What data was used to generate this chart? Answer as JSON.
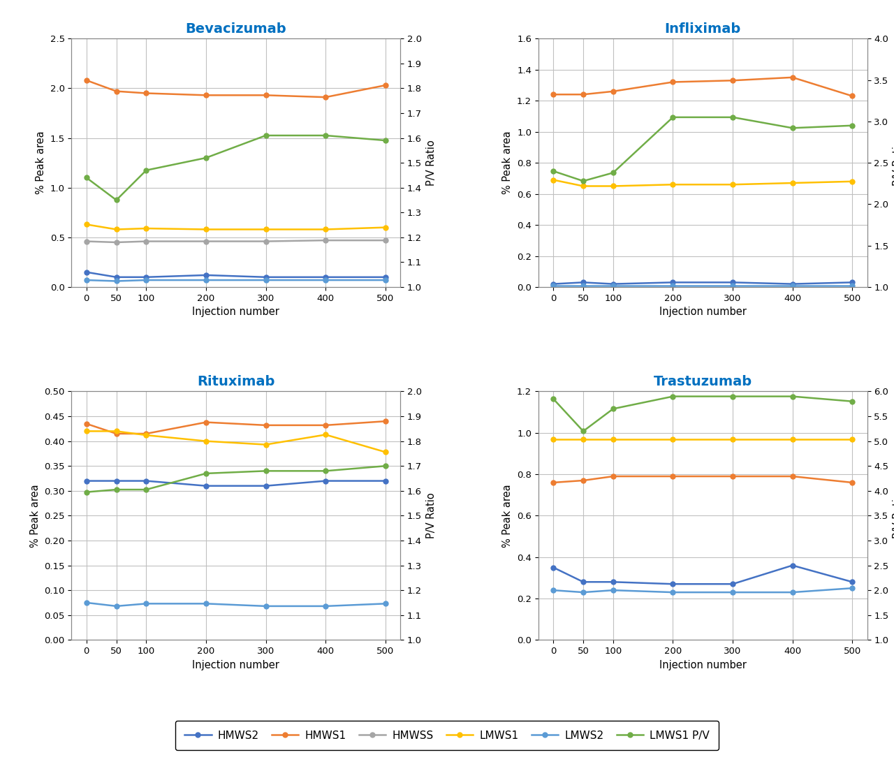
{
  "x": [
    0,
    50,
    100,
    200,
    300,
    400,
    500
  ],
  "plots": {
    "Bevacizumab": {
      "HMWS2": [
        0.15,
        0.1,
        0.1,
        0.12,
        0.1,
        0.1,
        0.1
      ],
      "HMWS1": [
        2.08,
        1.97,
        1.95,
        1.93,
        1.93,
        1.91,
        2.03
      ],
      "HMWSS": [
        0.46,
        0.45,
        0.46,
        0.46,
        0.46,
        0.47,
        0.47
      ],
      "LMWS1": [
        0.63,
        0.58,
        0.59,
        0.58,
        0.58,
        0.58,
        0.6
      ],
      "LMWS2": [
        0.07,
        0.06,
        0.07,
        0.07,
        0.07,
        0.07,
        0.07
      ],
      "LMWS1_PV": [
        1.44,
        1.35,
        1.47,
        1.52,
        1.61,
        1.61,
        1.59
      ],
      "ylim_left": [
        0,
        2.5
      ],
      "ylim_right": [
        1.0,
        2.0
      ],
      "yticks_left": [
        0,
        0.5,
        1.0,
        1.5,
        2.0,
        2.5
      ],
      "yticks_right": [
        1.0,
        1.1,
        1.2,
        1.3,
        1.4,
        1.5,
        1.6,
        1.7,
        1.8,
        1.9,
        2.0
      ]
    },
    "Infliximab": {
      "HMWS2": [
        0.02,
        0.03,
        0.02,
        0.03,
        0.03,
        0.02,
        0.03
      ],
      "HMWS1": [
        1.24,
        1.24,
        1.26,
        1.32,
        1.33,
        1.35,
        1.23
      ],
      "HMWSS": null,
      "LMWS1": [
        0.69,
        0.65,
        0.65,
        0.66,
        0.66,
        0.67,
        0.68
      ],
      "LMWS2": [
        0.01,
        0.01,
        0.01,
        0.01,
        0.01,
        0.01,
        0.01
      ],
      "LMWS1_PV": [
        2.4,
        2.28,
        2.38,
        3.05,
        3.05,
        2.92,
        2.95
      ],
      "ylim_left": [
        0,
        1.6
      ],
      "ylim_right": [
        1.0,
        4.0
      ],
      "yticks_left": [
        0,
        0.2,
        0.4,
        0.6,
        0.8,
        1.0,
        1.2,
        1.4,
        1.6
      ],
      "yticks_right": [
        1.0,
        1.5,
        2.0,
        2.5,
        3.0,
        3.5,
        4.0
      ]
    },
    "Rituximab": {
      "HMWS2": [
        0.32,
        0.32,
        0.32,
        0.31,
        0.31,
        0.32,
        0.32
      ],
      "HMWS1": [
        0.435,
        0.415,
        0.415,
        0.438,
        0.432,
        0.432,
        0.44
      ],
      "HMWSS": null,
      "LMWS1": [
        0.42,
        0.42,
        0.412,
        0.4,
        0.393,
        0.413,
        0.378
      ],
      "LMWS2": [
        0.075,
        0.068,
        0.073,
        0.073,
        0.068,
        0.068,
        0.073
      ],
      "LMWS1_PV": [
        1.595,
        1.605,
        1.605,
        1.67,
        1.68,
        1.68,
        1.7
      ],
      "ylim_left": [
        0,
        0.5
      ],
      "ylim_right": [
        1.0,
        2.0
      ],
      "yticks_left": [
        0,
        0.05,
        0.1,
        0.15,
        0.2,
        0.25,
        0.3,
        0.35,
        0.4,
        0.45,
        0.5
      ],
      "yticks_right": [
        1.0,
        1.1,
        1.2,
        1.3,
        1.4,
        1.5,
        1.6,
        1.7,
        1.8,
        1.9,
        2.0
      ]
    },
    "Trastuzumab": {
      "HMWS2": [
        0.35,
        0.28,
        0.28,
        0.27,
        0.27,
        0.36,
        0.28
      ],
      "HMWS1": [
        0.76,
        0.77,
        0.79,
        0.79,
        0.79,
        0.79,
        0.76
      ],
      "HMWSS": null,
      "LMWS1": [
        0.97,
        0.97,
        0.97,
        0.97,
        0.97,
        0.97,
        0.97
      ],
      "LMWS2": [
        0.24,
        0.23,
        0.24,
        0.23,
        0.23,
        0.23,
        0.25
      ],
      "LMWS1_PV": [
        5.85,
        5.2,
        5.65,
        5.9,
        5.9,
        5.9,
        5.8
      ],
      "ylim_left": [
        0,
        1.2
      ],
      "ylim_right": [
        1.0,
        6.0
      ],
      "yticks_left": [
        0,
        0.2,
        0.4,
        0.6,
        0.8,
        1.0,
        1.2
      ],
      "yticks_right": [
        1.0,
        1.5,
        2.0,
        2.5,
        3.0,
        3.5,
        4.0,
        4.5,
        5.0,
        5.5,
        6.0
      ]
    }
  },
  "colors": {
    "HMWS2": "#4472C4",
    "HMWS1": "#ED7D31",
    "HMWSS": "#A5A5A5",
    "LMWS1": "#FFC000",
    "LMWS2": "#5B9BD5",
    "LMWS1_PV": "#70AD47"
  },
  "title_color": "#0070C0",
  "xlabel": "Injection number",
  "ylabel_left": "% Peak area",
  "ylabel_right": "P/V Ratio",
  "marker": "o",
  "markersize": 5,
  "linewidth": 1.8,
  "grid_color": "#C0C0C0",
  "background_color": "#FFFFFF"
}
